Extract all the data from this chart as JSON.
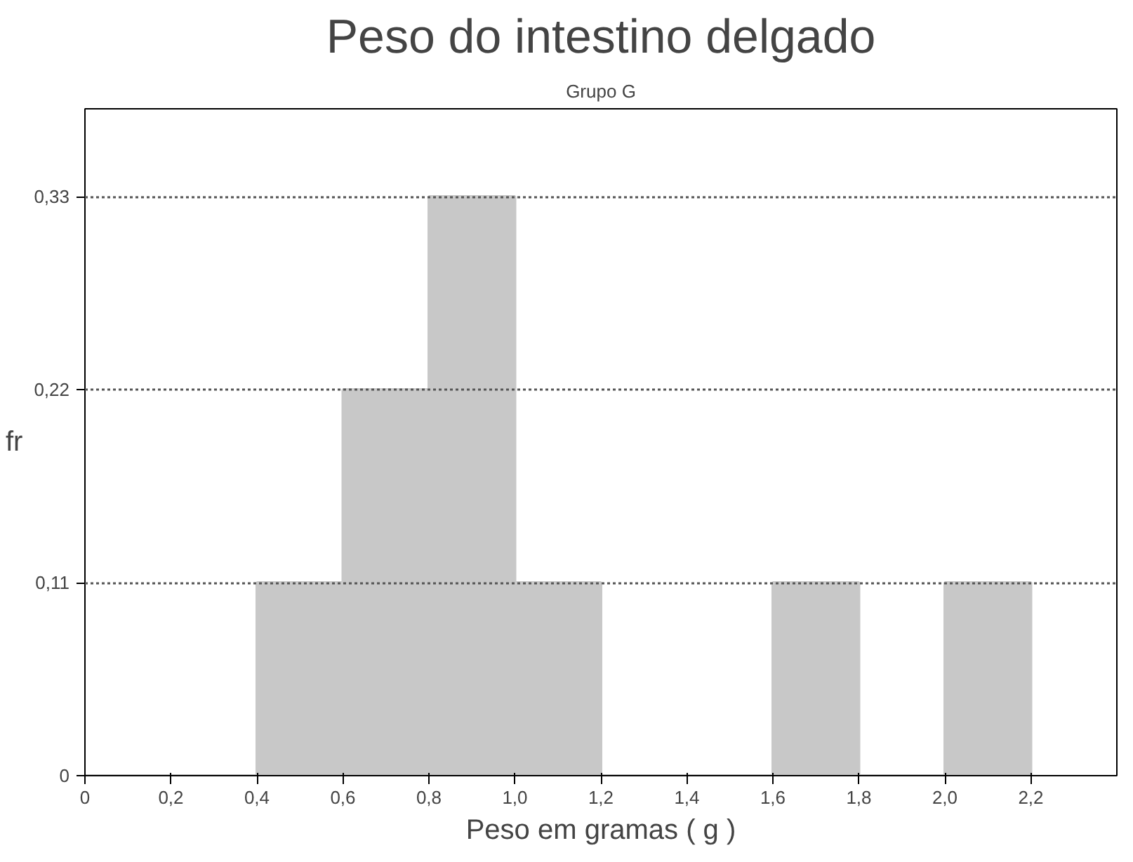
{
  "chart_data": {
    "type": "histogram",
    "title": "Peso do intestino delgado",
    "subtitle": "Grupo G",
    "xlabel": "Peso em gramas ( g )",
    "ylabel": "fr",
    "bins": [
      0,
      0.2,
      0.4,
      0.6,
      0.8,
      1.0,
      1.2,
      1.4,
      1.6,
      1.8,
      2.0,
      2.2
    ],
    "values": [
      0,
      0,
      0.11,
      0.22,
      0.33,
      0.11,
      0,
      0,
      0.11,
      0,
      0.11
    ],
    "color": "#c8c8c8",
    "xlim": [
      0,
      2.4
    ],
    "ylim": [
      0,
      0.38
    ],
    "xticks": [
      0,
      {
        "value": 0.2,
        "label": "0,2"
      },
      {
        "value": 0.4,
        "label": "0,4"
      },
      {
        "value": 0.6,
        "label": "0,6"
      },
      {
        "value": 0.8,
        "label": "0,8"
      },
      {
        "value": 1.0,
        "label": "1,0"
      },
      {
        "value": 1.2,
        "label": "1,2"
      },
      {
        "value": 1.4,
        "label": "1,4"
      },
      {
        "value": 1.6,
        "label": "1,6"
      },
      {
        "value": 1.8,
        "label": "1,8"
      },
      {
        "value": 2.0,
        "label": "2,0"
      },
      {
        "value": 2.2,
        "label": "2,2"
      }
    ],
    "yticks": [
      0,
      {
        "value": 0.11,
        "label": "0,11"
      },
      {
        "value": 0.22,
        "label": "0,22"
      },
      {
        "value": 0.33,
        "label": "0,33"
      }
    ],
    "grid": "y"
  }
}
